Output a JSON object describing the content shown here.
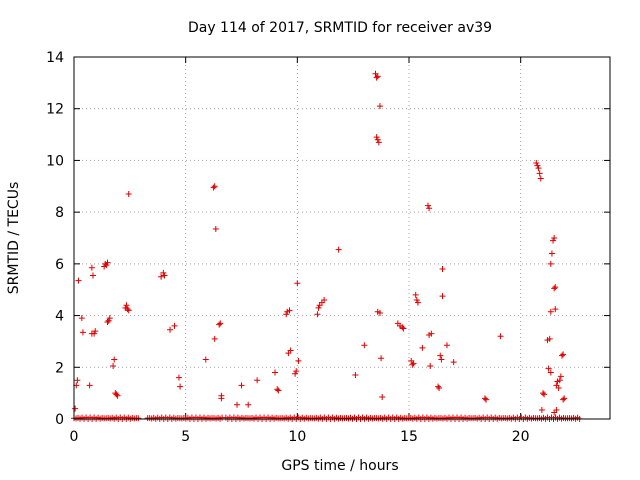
{
  "chart_data": {
    "type": "scatter",
    "title": "Day 114 of 2017, SRMTID for receiver av39",
    "xlabel": "GPS time / hours",
    "ylabel": "SRMTID / TECUs",
    "xlim": [
      0,
      24
    ],
    "ylim": [
      0,
      14
    ],
    "x_ticks": [
      0,
      5,
      10,
      15,
      20
    ],
    "y_ticks": [
      0,
      2,
      4,
      6,
      8,
      10,
      12,
      14
    ],
    "grid": true,
    "marker": "+",
    "marker_color": "#e00000",
    "series": [
      {
        "name": "SRMTID",
        "points": [
          [
            0.05,
            0.4
          ],
          [
            0.1,
            1.3
          ],
          [
            0.15,
            1.5
          ],
          [
            0.2,
            5.35
          ],
          [
            0.35,
            3.9
          ],
          [
            0.4,
            3.35
          ],
          [
            0.7,
            1.3
          ],
          [
            0.8,
            5.85
          ],
          [
            0.85,
            5.55
          ],
          [
            0.8,
            3.3
          ],
          [
            0.9,
            3.3
          ],
          [
            0.95,
            3.4
          ],
          [
            1.35,
            5.9
          ],
          [
            1.4,
            6.0
          ],
          [
            1.45,
            5.95
          ],
          [
            1.5,
            6.05
          ],
          [
            1.5,
            3.75
          ],
          [
            1.55,
            3.8
          ],
          [
            1.6,
            3.9
          ],
          [
            1.75,
            2.05
          ],
          [
            1.8,
            2.3
          ],
          [
            1.85,
            1.0
          ],
          [
            1.9,
            0.95
          ],
          [
            1.95,
            0.9
          ],
          [
            2.3,
            4.3
          ],
          [
            2.35,
            4.4
          ],
          [
            2.4,
            4.25
          ],
          [
            2.45,
            4.2
          ],
          [
            2.45,
            8.7
          ],
          [
            3.9,
            5.5
          ],
          [
            4.0,
            5.65
          ],
          [
            4.05,
            5.55
          ],
          [
            4.3,
            3.45
          ],
          [
            4.5,
            3.6
          ],
          [
            4.7,
            1.6
          ],
          [
            4.75,
            1.25
          ],
          [
            5.9,
            2.3
          ],
          [
            6.25,
            8.95
          ],
          [
            6.3,
            9.0
          ],
          [
            6.35,
            7.35
          ],
          [
            6.3,
            3.1
          ],
          [
            6.5,
            3.65
          ],
          [
            6.55,
            3.7
          ],
          [
            6.6,
            0.9
          ],
          [
            6.6,
            0.8
          ],
          [
            7.3,
            0.55
          ],
          [
            7.5,
            1.3
          ],
          [
            7.8,
            0.55
          ],
          [
            8.2,
            1.5
          ],
          [
            9.0,
            1.8
          ],
          [
            9.1,
            1.15
          ],
          [
            9.15,
            1.1
          ],
          [
            9.6,
            2.55
          ],
          [
            9.7,
            2.65
          ],
          [
            9.5,
            4.05
          ],
          [
            9.55,
            4.15
          ],
          [
            9.65,
            4.2
          ],
          [
            9.9,
            1.75
          ],
          [
            9.95,
            1.85
          ],
          [
            10.05,
            2.25
          ],
          [
            10.0,
            5.25
          ],
          [
            10.9,
            4.05
          ],
          [
            10.95,
            4.3
          ],
          [
            11.0,
            4.4
          ],
          [
            11.1,
            4.5
          ],
          [
            11.2,
            4.6
          ],
          [
            11.85,
            6.55
          ],
          [
            12.6,
            1.7
          ],
          [
            13.0,
            2.85
          ],
          [
            13.5,
            13.35
          ],
          [
            13.55,
            13.2
          ],
          [
            13.6,
            13.25
          ],
          [
            13.6,
            10.8
          ],
          [
            13.55,
            10.9
          ],
          [
            13.65,
            10.7
          ],
          [
            13.7,
            12.1
          ],
          [
            13.6,
            4.15
          ],
          [
            13.7,
            4.1
          ],
          [
            13.75,
            2.35
          ],
          [
            13.8,
            0.85
          ],
          [
            14.5,
            3.7
          ],
          [
            14.6,
            3.6
          ],
          [
            14.7,
            3.55
          ],
          [
            14.75,
            3.5
          ],
          [
            15.1,
            2.25
          ],
          [
            15.15,
            2.1
          ],
          [
            15.2,
            2.15
          ],
          [
            15.3,
            4.8
          ],
          [
            15.35,
            4.6
          ],
          [
            15.4,
            4.5
          ],
          [
            15.6,
            2.75
          ],
          [
            15.85,
            8.25
          ],
          [
            15.9,
            8.15
          ],
          [
            15.9,
            3.25
          ],
          [
            16.0,
            3.3
          ],
          [
            15.95,
            2.05
          ],
          [
            16.3,
            1.25
          ],
          [
            16.35,
            1.2
          ],
          [
            16.4,
            2.45
          ],
          [
            16.45,
            2.3
          ],
          [
            16.5,
            5.8
          ],
          [
            16.5,
            4.75
          ],
          [
            16.7,
            2.85
          ],
          [
            17.0,
            2.2
          ],
          [
            18.4,
            0.8
          ],
          [
            18.45,
            0.75
          ],
          [
            19.1,
            3.2
          ],
          [
            20.7,
            9.9
          ],
          [
            20.75,
            9.8
          ],
          [
            20.8,
            9.7
          ],
          [
            20.85,
            9.5
          ],
          [
            20.9,
            9.3
          ],
          [
            20.95,
            0.35
          ],
          [
            21.0,
            1.0
          ],
          [
            21.05,
            0.95
          ],
          [
            21.2,
            3.05
          ],
          [
            21.3,
            3.1
          ],
          [
            21.35,
            4.15
          ],
          [
            21.25,
            1.95
          ],
          [
            21.35,
            1.8
          ],
          [
            21.35,
            6.0
          ],
          [
            21.4,
            6.4
          ],
          [
            21.45,
            6.9
          ],
          [
            21.5,
            7.0
          ],
          [
            21.5,
            5.05
          ],
          [
            21.55,
            5.1
          ],
          [
            21.55,
            4.25
          ],
          [
            21.6,
            1.3
          ],
          [
            21.65,
            1.45
          ],
          [
            21.7,
            1.2
          ],
          [
            21.75,
            1.5
          ],
          [
            21.8,
            1.65
          ],
          [
            21.85,
            2.45
          ],
          [
            21.9,
            2.5
          ],
          [
            21.9,
            0.75
          ],
          [
            21.95,
            0.8
          ],
          [
            21.5,
            0.25
          ],
          [
            21.6,
            0.35
          ]
        ]
      }
    ]
  }
}
